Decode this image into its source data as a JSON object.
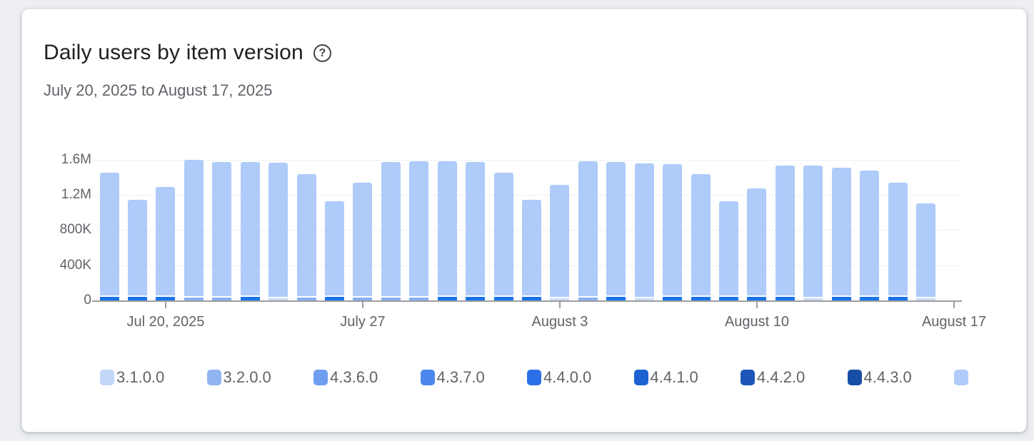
{
  "card": {
    "title": "Daily users by item version",
    "date_range": "July 20, 2025 to August 17, 2025",
    "help_icon": "circled-question-mark-icon",
    "help_glyph": "?"
  },
  "chart_data": {
    "type": "bar",
    "stacked": true,
    "title": "Daily users by item version",
    "date_range": "July 20, 2025 to August 17, 2025",
    "grid": true,
    "legend_position": "bottom",
    "y_axis": {
      "max": 1600000,
      "tick_labels": [
        "1.6M",
        "1.2M",
        "800K",
        "400K",
        "0"
      ],
      "tick_values": [
        1600000,
        1200000,
        800000,
        400000,
        0
      ]
    },
    "x_axis": {
      "tick_labels": [
        "Jul 20, 2025",
        "July 27",
        "August 3",
        "August 10",
        "August 17"
      ],
      "tick_slots": [
        2,
        9,
        16,
        23,
        30
      ],
      "total_slots": 31
    },
    "legend": {
      "items": [
        {
          "label": "3.1.0.0",
          "color": "#c3d7fa"
        },
        {
          "label": "3.2.0.0",
          "color": "#92b4f0"
        },
        {
          "label": "4.3.6.0",
          "color": "#6d9eef"
        },
        {
          "label": "4.3.7.0",
          "color": "#4b87ed"
        },
        {
          "label": "4.4.0.0",
          "color": "#2b70e6"
        },
        {
          "label": "4.4.1.0",
          "color": "#1d62d3"
        },
        {
          "label": "4.4.2.0",
          "color": "#1c57b8"
        },
        {
          "label": "4.4.3.0",
          "color": "#174ea6"
        },
        {
          "label": "",
          "color": "#aecbfa"
        }
      ]
    },
    "bar_body_color": "#aecbfa",
    "accent_colors": {
      "bright": "#1a73e8",
      "medium": "#89b0f4",
      "pale": "#c9dcfb"
    },
    "accent_values": {
      "bright": 40000,
      "medium": 30000,
      "pale": 22000
    },
    "axis_color": "#9e9e9e",
    "grid_color": "#eef0f2",
    "label_color": "#5f6368",
    "bars": [
      {
        "total": 1450000,
        "accent": "bright"
      },
      {
        "total": 1140000,
        "accent": "bright"
      },
      {
        "total": 1290000,
        "accent": "bright"
      },
      {
        "total": 1600000,
        "accent": "medium"
      },
      {
        "total": 1575000,
        "accent": "medium"
      },
      {
        "total": 1575000,
        "accent": "bright"
      },
      {
        "total": 1560000,
        "accent": "pale"
      },
      {
        "total": 1435000,
        "accent": "medium"
      },
      {
        "total": 1125000,
        "accent": "bright"
      },
      {
        "total": 1335000,
        "accent": "medium"
      },
      {
        "total": 1575000,
        "accent": "medium"
      },
      {
        "total": 1580000,
        "accent": "medium"
      },
      {
        "total": 1580000,
        "accent": "bright"
      },
      {
        "total": 1570000,
        "accent": "bright"
      },
      {
        "total": 1450000,
        "accent": "bright"
      },
      {
        "total": 1140000,
        "accent": "bright"
      },
      {
        "total": 1315000,
        "accent": "pale"
      },
      {
        "total": 1580000,
        "accent": "medium"
      },
      {
        "total": 1575000,
        "accent": "bright"
      },
      {
        "total": 1555000,
        "accent": "pale"
      },
      {
        "total": 1545000,
        "accent": "bright"
      },
      {
        "total": 1435000,
        "accent": "bright"
      },
      {
        "total": 1125000,
        "accent": "bright"
      },
      {
        "total": 1270000,
        "accent": "bright"
      },
      {
        "total": 1530000,
        "accent": "bright"
      },
      {
        "total": 1535000,
        "accent": "pale"
      },
      {
        "total": 1510000,
        "accent": "bright"
      },
      {
        "total": 1475000,
        "accent": "bright"
      },
      {
        "total": 1335000,
        "accent": "bright"
      },
      {
        "total": 1105000,
        "accent": "pale"
      }
    ]
  }
}
